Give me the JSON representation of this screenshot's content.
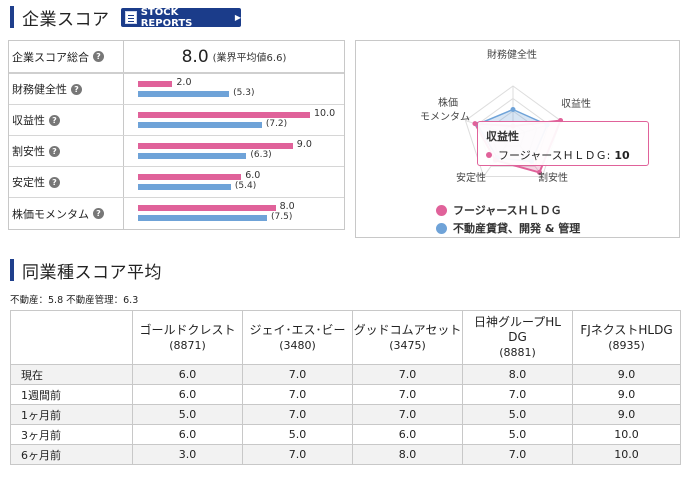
{
  "score_section": {
    "title": "企業スコア",
    "stock_reports_label": "STOCK REPORTS",
    "total_label": "企業スコア総合",
    "total_value": "8.0",
    "industry_avg_text": "(業界平均値6.6)",
    "items": [
      {
        "label": "財務健全性",
        "company_text": "2.0",
        "industry_text": "(5.3)",
        "company": 2.0,
        "industry": 5.3
      },
      {
        "label": "収益性",
        "company_text": "10.0",
        "industry_text": "(7.2)",
        "company": 10.0,
        "industry": 7.2
      },
      {
        "label": "割安性",
        "company_text": "9.0",
        "industry_text": "(6.3)",
        "company": 9.0,
        "industry": 6.3
      },
      {
        "label": "安定性",
        "company_text": "6.0",
        "industry_text": "(5.4)",
        "company": 6.0,
        "industry": 5.4
      },
      {
        "label": "株価モメンタム",
        "company_text": "8.0",
        "industry_text": "(7.5)",
        "company": 8.0,
        "industry": 7.5
      }
    ],
    "max_value": 10
  },
  "radar": {
    "axis_labels": {
      "a0": "財務健全性",
      "a1": "収益性",
      "a2": "割安性",
      "a3": "安定性",
      "a4_line1": "株価",
      "a4_line2": "モメンタム"
    },
    "tooltip": {
      "title": "収益性",
      "series": "フージャースＨＬＤＧ:",
      "value": "10"
    },
    "legend": [
      {
        "label": "フージャースＨＬＤＧ",
        "color": "#e0629a"
      },
      {
        "label": "不動産賃貸、開発 & 管理",
        "color": "#6fa3d8"
      }
    ]
  },
  "peer_section": {
    "title": "同業種スコア平均",
    "note": "不動産：5.8 不動産管理：6.3",
    "columns": [
      {
        "name": "ゴールドクレスト",
        "code": "(8871)"
      },
      {
        "name": "ジェイ･エス･ビー",
        "code": "(3480)"
      },
      {
        "name": "グッドコムアセット",
        "code": "(3475)"
      },
      {
        "name_l1": "日神グループHL",
        "name_l2": "DG",
        "code": "(8881)"
      },
      {
        "name": "FJネクストHLDG",
        "code": "(8935)"
      }
    ],
    "rows": [
      {
        "label": "現在",
        "values": [
          "6.0",
          "7.0",
          "7.0",
          "8.0",
          "9.0"
        ]
      },
      {
        "label": "1週間前",
        "values": [
          "6.0",
          "7.0",
          "7.0",
          "7.0",
          "9.0"
        ]
      },
      {
        "label": "1ヶ月前",
        "values": [
          "5.0",
          "7.0",
          "7.0",
          "5.0",
          "9.0"
        ]
      },
      {
        "label": "3ヶ月前",
        "values": [
          "6.0",
          "5.0",
          "6.0",
          "5.0",
          "10.0"
        ]
      },
      {
        "label": "6ヶ月前",
        "values": [
          "3.0",
          "7.0",
          "8.0",
          "7.0",
          "10.0"
        ]
      }
    ]
  },
  "colors": {
    "company": "#e0629a",
    "industry": "#6fa3d8",
    "accent": "#1f3f8c"
  }
}
